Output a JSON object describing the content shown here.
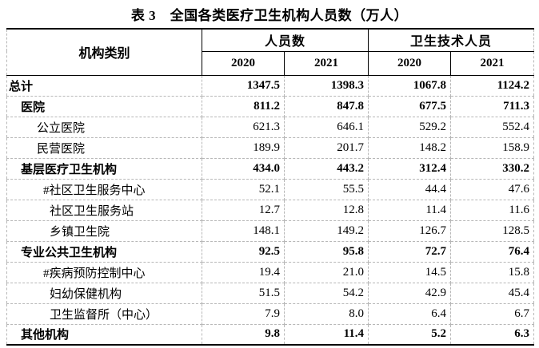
{
  "title": "表 3　全国各类医疗卫生机构人员数（万人）",
  "colors": {
    "text": "#000000",
    "background": "#ffffff",
    "solid_border": "#000000",
    "dashed_gridline": "#b7b7b7"
  },
  "table": {
    "col_group_label": "机构类别",
    "groups": [
      {
        "label": "人员数",
        "years": [
          "2020",
          "2021"
        ]
      },
      {
        "label": "卫生技术人员",
        "years": [
          "2020",
          "2021"
        ]
      }
    ],
    "rows": [
      {
        "label": "总计",
        "indent": 0,
        "bold": true,
        "values": [
          "1347.5",
          "1398.3",
          "1067.8",
          "1124.2"
        ]
      },
      {
        "label": "医院",
        "indent": 1,
        "bold": true,
        "values": [
          "811.2",
          "847.8",
          "677.5",
          "711.3"
        ]
      },
      {
        "label": "公立医院",
        "indent": 2,
        "bold": false,
        "values": [
          "621.3",
          "646.1",
          "529.2",
          "552.4"
        ]
      },
      {
        "label": "民营医院",
        "indent": 2,
        "bold": false,
        "values": [
          "189.9",
          "201.7",
          "148.2",
          "158.9"
        ]
      },
      {
        "label": "基层医疗卫生机构",
        "indent": 1,
        "bold": true,
        "values": [
          "434.0",
          "443.2",
          "312.4",
          "330.2"
        ]
      },
      {
        "label": "#社区卫生服务中心",
        "indent": 3,
        "bold": false,
        "values": [
          "52.1",
          "55.5",
          "44.4",
          "47.6"
        ]
      },
      {
        "label": "社区卫生服务站",
        "indent": 4,
        "bold": false,
        "values": [
          "12.7",
          "12.8",
          "11.4",
          "11.6"
        ]
      },
      {
        "label": "乡镇卫生院",
        "indent": 4,
        "bold": false,
        "values": [
          "148.1",
          "149.2",
          "126.7",
          "128.5"
        ]
      },
      {
        "label": "专业公共卫生机构",
        "indent": 1,
        "bold": true,
        "values": [
          "92.5",
          "95.8",
          "72.7",
          "76.4"
        ]
      },
      {
        "label": "#疾病预防控制中心",
        "indent": 3,
        "bold": false,
        "values": [
          "19.4",
          "21.0",
          "14.5",
          "15.8"
        ]
      },
      {
        "label": "妇幼保健机构",
        "indent": 4,
        "bold": false,
        "values": [
          "51.5",
          "54.2",
          "42.9",
          "45.4"
        ]
      },
      {
        "label": "卫生监督所（中心）",
        "indent": 4,
        "bold": false,
        "values": [
          "7.9",
          "8.0",
          "6.4",
          "6.7"
        ]
      },
      {
        "label": "其他机构",
        "indent": 1,
        "bold": true,
        "values": [
          "9.8",
          "11.4",
          "5.2",
          "6.3"
        ]
      }
    ]
  },
  "chart_data": {
    "type": "table",
    "title": "表 3　全国各类医疗卫生机构人员数（万人）",
    "columns": [
      "机构类别",
      "人员数 2020",
      "人员数 2021",
      "卫生技术人员 2020",
      "卫生技术人员 2021"
    ],
    "rows": [
      [
        "总计",
        1347.5,
        1398.3,
        1067.8,
        1124.2
      ],
      [
        "医院",
        811.2,
        847.8,
        677.5,
        711.3
      ],
      [
        "公立医院",
        621.3,
        646.1,
        529.2,
        552.4
      ],
      [
        "民营医院",
        189.9,
        201.7,
        148.2,
        158.9
      ],
      [
        "基层医疗卫生机构",
        434.0,
        443.2,
        312.4,
        330.2
      ],
      [
        "#社区卫生服务中心",
        52.1,
        55.5,
        44.4,
        47.6
      ],
      [
        "社区卫生服务站",
        12.7,
        12.8,
        11.4,
        11.6
      ],
      [
        "乡镇卫生院",
        148.1,
        149.2,
        126.7,
        128.5
      ],
      [
        "专业公共卫生机构",
        92.5,
        95.8,
        72.7,
        76.4
      ],
      [
        "#疾病预防控制中心",
        19.4,
        21.0,
        14.5,
        15.8
      ],
      [
        "妇幼保健机构",
        51.5,
        54.2,
        42.9,
        45.4
      ],
      [
        "卫生监督所（中心）",
        7.9,
        8.0,
        6.4,
        6.7
      ],
      [
        "其他机构",
        9.8,
        11.4,
        5.2,
        6.3
      ]
    ]
  }
}
